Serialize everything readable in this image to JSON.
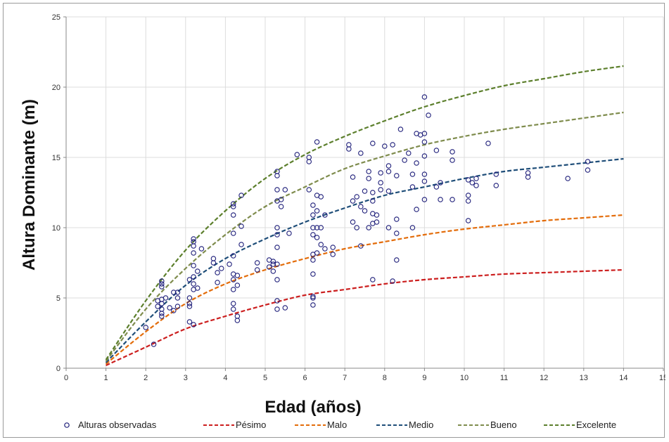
{
  "chart_data": {
    "type": "scatter",
    "title": "",
    "xlabel": "Edad (años)",
    "ylabel": "Altura Dominante (m)",
    "xlim": [
      0,
      15
    ],
    "ylim": [
      0,
      25
    ],
    "xticks": [
      "0",
      "1",
      "2",
      "3",
      "4",
      "5",
      "6",
      "7",
      "8",
      "9",
      "10",
      "11",
      "12",
      "13",
      "14",
      "15"
    ],
    "yticks": [
      "0",
      "5",
      "10",
      "15",
      "20",
      "25"
    ],
    "grid": true,
    "legend_position": "bottom",
    "observed": {
      "name": "Alturas observadas",
      "color": "#1f1f7a",
      "points": [
        [
          2.0,
          2.9
        ],
        [
          2.2,
          1.7
        ],
        [
          2.3,
          4.8
        ],
        [
          2.3,
          4.4
        ],
        [
          2.4,
          6.2
        ],
        [
          2.4,
          6.0
        ],
        [
          2.4,
          5.8
        ],
        [
          2.4,
          4.9
        ],
        [
          2.4,
          4.6
        ],
        [
          2.4,
          4.2
        ],
        [
          2.4,
          3.9
        ],
        [
          2.4,
          3.7
        ],
        [
          2.5,
          5.0
        ],
        [
          2.6,
          4.3
        ],
        [
          2.7,
          5.4
        ],
        [
          2.7,
          4.1
        ],
        [
          2.8,
          5.0
        ],
        [
          2.8,
          4.4
        ],
        [
          2.8,
          5.4
        ],
        [
          3.1,
          6.3
        ],
        [
          3.1,
          5.0
        ],
        [
          3.1,
          4.6
        ],
        [
          3.1,
          4.4
        ],
        [
          3.1,
          3.3
        ],
        [
          3.2,
          9.2
        ],
        [
          3.2,
          9.0
        ],
        [
          3.2,
          8.7
        ],
        [
          3.2,
          8.2
        ],
        [
          3.2,
          7.3
        ],
        [
          3.2,
          6.5
        ],
        [
          3.2,
          6.0
        ],
        [
          3.2,
          5.6
        ],
        [
          3.2,
          3.1
        ],
        [
          3.3,
          6.9
        ],
        [
          3.3,
          5.7
        ],
        [
          3.4,
          8.5
        ],
        [
          3.7,
          7.8
        ],
        [
          3.7,
          7.5
        ],
        [
          3.8,
          6.8
        ],
        [
          3.8,
          6.1
        ],
        [
          3.9,
          7.1
        ],
        [
          4.1,
          7.4
        ],
        [
          4.2,
          11.7
        ],
        [
          4.2,
          11.5
        ],
        [
          4.2,
          10.9
        ],
        [
          4.2,
          9.6
        ],
        [
          4.2,
          8.0
        ],
        [
          4.2,
          6.7
        ],
        [
          4.2,
          6.3
        ],
        [
          4.2,
          5.6
        ],
        [
          4.2,
          4.6
        ],
        [
          4.2,
          4.2
        ],
        [
          4.3,
          3.7
        ],
        [
          4.3,
          3.4
        ],
        [
          4.3,
          6.6
        ],
        [
          4.3,
          5.9
        ],
        [
          4.4,
          12.3
        ],
        [
          4.4,
          10.1
        ],
        [
          4.4,
          8.8
        ],
        [
          4.8,
          7.5
        ],
        [
          4.8,
          7.0
        ],
        [
          5.1,
          7.7
        ],
        [
          5.1,
          7.2
        ],
        [
          5.2,
          7.6
        ],
        [
          5.2,
          7.4
        ],
        [
          5.2,
          6.9
        ],
        [
          5.3,
          14.0
        ],
        [
          5.3,
          13.7
        ],
        [
          5.3,
          12.7
        ],
        [
          5.3,
          11.9
        ],
        [
          5.3,
          10.0
        ],
        [
          5.3,
          9.5
        ],
        [
          5.3,
          8.6
        ],
        [
          5.3,
          7.4
        ],
        [
          5.3,
          6.3
        ],
        [
          5.3,
          4.8
        ],
        [
          5.3,
          4.2
        ],
        [
          5.4,
          12.0
        ],
        [
          5.4,
          11.5
        ],
        [
          5.5,
          12.7
        ],
        [
          5.5,
          4.3
        ],
        [
          5.6,
          9.6
        ],
        [
          5.8,
          15.2
        ],
        [
          6.1,
          15.0
        ],
        [
          6.1,
          14.7
        ],
        [
          6.1,
          12.7
        ],
        [
          6.2,
          11.6
        ],
        [
          6.2,
          10.9
        ],
        [
          6.2,
          10.0
        ],
        [
          6.2,
          9.5
        ],
        [
          6.2,
          8.1
        ],
        [
          6.2,
          7.7
        ],
        [
          6.2,
          6.7
        ],
        [
          6.2,
          5.1
        ],
        [
          6.2,
          5.0
        ],
        [
          6.2,
          4.5
        ],
        [
          6.3,
          16.1
        ],
        [
          6.3,
          12.3
        ],
        [
          6.3,
          11.2
        ],
        [
          6.3,
          10.0
        ],
        [
          6.3,
          9.3
        ],
        [
          6.3,
          8.2
        ],
        [
          6.4,
          12.2
        ],
        [
          6.4,
          10.0
        ],
        [
          6.4,
          8.8
        ],
        [
          6.5,
          10.9
        ],
        [
          6.5,
          8.5
        ],
        [
          6.7,
          8.6
        ],
        [
          6.7,
          8.1
        ],
        [
          7.1,
          15.9
        ],
        [
          7.1,
          15.6
        ],
        [
          7.2,
          13.6
        ],
        [
          7.2,
          11.9
        ],
        [
          7.2,
          10.4
        ],
        [
          7.3,
          12.2
        ],
        [
          7.3,
          10.0
        ],
        [
          7.4,
          15.3
        ],
        [
          7.4,
          11.5
        ],
        [
          7.4,
          8.7
        ],
        [
          7.5,
          12.6
        ],
        [
          7.5,
          11.2
        ],
        [
          7.6,
          14.0
        ],
        [
          7.6,
          13.5
        ],
        [
          7.6,
          10.0
        ],
        [
          7.7,
          16.0
        ],
        [
          7.7,
          12.5
        ],
        [
          7.7,
          11.9
        ],
        [
          7.7,
          11.0
        ],
        [
          7.7,
          10.3
        ],
        [
          7.7,
          6.3
        ],
        [
          7.8,
          10.9
        ],
        [
          7.8,
          10.4
        ],
        [
          7.9,
          13.9
        ],
        [
          7.9,
          13.2
        ],
        [
          7.9,
          12.7
        ],
        [
          8.0,
          15.8
        ],
        [
          8.1,
          14.4
        ],
        [
          8.1,
          14.0
        ],
        [
          8.1,
          12.6
        ],
        [
          8.1,
          10.0
        ],
        [
          8.2,
          15.9
        ],
        [
          8.2,
          6.2
        ],
        [
          8.3,
          13.7
        ],
        [
          8.3,
          10.6
        ],
        [
          8.3,
          9.6
        ],
        [
          8.3,
          7.7
        ],
        [
          8.4,
          17.0
        ],
        [
          8.5,
          14.8
        ],
        [
          8.6,
          15.3
        ],
        [
          8.7,
          13.8
        ],
        [
          8.7,
          12.9
        ],
        [
          8.7,
          10.0
        ],
        [
          8.8,
          16.7
        ],
        [
          8.8,
          14.6
        ],
        [
          8.8,
          11.3
        ],
        [
          8.9,
          16.6
        ],
        [
          9.0,
          19.3
        ],
        [
          9.0,
          16.7
        ],
        [
          9.0,
          16.1
        ],
        [
          9.0,
          15.1
        ],
        [
          9.0,
          13.8
        ],
        [
          9.0,
          13.3
        ],
        [
          9.0,
          12.0
        ],
        [
          9.1,
          18.0
        ],
        [
          9.3,
          15.5
        ],
        [
          9.3,
          12.9
        ],
        [
          9.4,
          13.2
        ],
        [
          9.4,
          12.0
        ],
        [
          9.7,
          15.4
        ],
        [
          9.7,
          14.8
        ],
        [
          9.7,
          12.0
        ],
        [
          10.1,
          13.4
        ],
        [
          10.1,
          12.3
        ],
        [
          10.1,
          11.9
        ],
        [
          10.1,
          10.5
        ],
        [
          10.2,
          13.2
        ],
        [
          10.3,
          13.5
        ],
        [
          10.3,
          13.0
        ],
        [
          10.6,
          16.0
        ],
        [
          10.8,
          13.8
        ],
        [
          10.8,
          13.0
        ],
        [
          11.6,
          13.9
        ],
        [
          11.6,
          13.6
        ],
        [
          12.6,
          13.5
        ],
        [
          13.1,
          14.7
        ],
        [
          13.1,
          14.1
        ]
      ]
    },
    "series": [
      {
        "name": "Pésimo",
        "color": "#cc1f1f",
        "x": [
          1,
          2,
          3,
          4,
          5,
          6,
          7,
          8,
          9,
          10,
          11,
          12,
          13,
          14
        ],
        "values": [
          0.2,
          1.5,
          2.8,
          3.7,
          4.5,
          5.2,
          5.6,
          6.0,
          6.3,
          6.5,
          6.7,
          6.8,
          6.9,
          7.0
        ]
      },
      {
        "name": "Malo",
        "color": "#e36c0a",
        "x": [
          1,
          2,
          3,
          4,
          5,
          6,
          7,
          8,
          9,
          10,
          11,
          12,
          13,
          14
        ],
        "values": [
          0.3,
          2.6,
          4.6,
          6.0,
          7.0,
          7.8,
          8.5,
          9.0,
          9.5,
          9.9,
          10.2,
          10.5,
          10.7,
          10.9
        ]
      },
      {
        "name": "Medio",
        "color": "#1f4e79",
        "x": [
          1,
          2,
          3,
          4,
          5,
          6,
          7,
          8,
          9,
          10,
          11,
          12,
          13,
          14
        ],
        "values": [
          0.4,
          3.3,
          5.9,
          7.8,
          9.2,
          10.4,
          11.4,
          12.3,
          12.9,
          13.5,
          14.0,
          14.3,
          14.6,
          14.9
        ]
      },
      {
        "name": "Bueno",
        "color": "#7f8c4d",
        "x": [
          1,
          2,
          3,
          4,
          5,
          6,
          7,
          8,
          9,
          10,
          11,
          12,
          13,
          14
        ],
        "values": [
          0.5,
          4.2,
          7.1,
          9.5,
          11.5,
          12.9,
          14.2,
          15.1,
          15.9,
          16.5,
          17.0,
          17.4,
          17.8,
          18.2
        ]
      },
      {
        "name": "Excelente",
        "color": "#5c7f2c",
        "x": [
          1,
          2,
          3,
          4,
          5,
          6,
          7,
          8,
          9,
          10,
          11,
          12,
          13,
          14
        ],
        "values": [
          0.6,
          4.8,
          8.4,
          11.2,
          13.5,
          15.2,
          16.5,
          17.6,
          18.6,
          19.4,
          20.1,
          20.6,
          21.1,
          21.5
        ]
      }
    ]
  }
}
